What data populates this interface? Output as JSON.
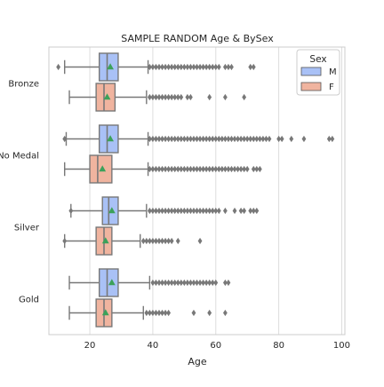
{
  "chart_data": {
    "type": "boxplot",
    "title": "SAMPLE RANDOM Age & BySex",
    "xlabel": "Age",
    "ylabel": "",
    "orientation": "horizontal",
    "xlim": [
      7,
      101
    ],
    "xticks": [
      20,
      40,
      60,
      80,
      100
    ],
    "grid": true,
    "legend": {
      "title": "Sex",
      "position": "top-right",
      "entries": [
        "M",
        "F"
      ]
    },
    "categories": [
      "Bronze",
      "No Medal",
      "Silver",
      "Gold"
    ],
    "series": [
      {
        "name": "M",
        "color": "#a9c1f6",
        "boxes": [
          {
            "whislo": 12,
            "q1": 23,
            "med": 25.5,
            "q3": 29,
            "whishi": 38.5,
            "mean": 26.5,
            "fliers": [
              10,
              39,
              40,
              41,
              42,
              43,
              44,
              45,
              46,
              47,
              48,
              49,
              50,
              51,
              52,
              53,
              54,
              55,
              56,
              57,
              58,
              59,
              60,
              61,
              63,
              64,
              65,
              71,
              72
            ]
          },
          {
            "whislo": 12.5,
            "q1": 23,
            "med": 25.5,
            "q3": 29,
            "whishi": 38.5,
            "mean": 26.5,
            "fliers": [
              12,
              39,
              40,
              41,
              42,
              43,
              44,
              45,
              46,
              47,
              48,
              49,
              50,
              51,
              52,
              53,
              54,
              55,
              56,
              57,
              58,
              59,
              60,
              61,
              62,
              63,
              64,
              65,
              66,
              67,
              68,
              69,
              70,
              71,
              72,
              73,
              74,
              75,
              76,
              77,
              80,
              81,
              84,
              88,
              96,
              97
            ]
          },
          {
            "whislo": 14,
            "q1": 24,
            "med": 26,
            "q3": 29,
            "whishi": 38,
            "mean": 27,
            "fliers": [
              14,
              39,
              40,
              41,
              42,
              43,
              44,
              45,
              46,
              47,
              48,
              49,
              50,
              51,
              52,
              53,
              54,
              55,
              56,
              57,
              58,
              59,
              60,
              61,
              63,
              66,
              68,
              69,
              71,
              72,
              73
            ]
          },
          {
            "whislo": 13.5,
            "q1": 23,
            "med": 25.5,
            "q3": 29,
            "whishi": 39,
            "mean": 27,
            "fliers": [
              40,
              41,
              42,
              43,
              44,
              45,
              46,
              47,
              48,
              49,
              50,
              51,
              52,
              53,
              54,
              55,
              56,
              57,
              58,
              59,
              60,
              63,
              64
            ]
          }
        ]
      },
      {
        "name": "F",
        "color": "#f0b49f",
        "boxes": [
          {
            "whislo": 13.5,
            "q1": 22,
            "med": 24.5,
            "q3": 28,
            "whishi": 38,
            "mean": 25.5,
            "fliers": [
              39,
              40,
              41,
              42,
              43,
              44,
              45,
              46,
              47,
              48,
              49,
              51,
              52,
              58,
              63,
              69
            ]
          },
          {
            "whislo": 12,
            "q1": 20,
            "med": 22.5,
            "q3": 27,
            "whishi": 38.5,
            "mean": 24,
            "fliers": [
              39,
              40,
              41,
              42,
              43,
              44,
              45,
              46,
              47,
              48,
              49,
              50,
              51,
              52,
              53,
              54,
              55,
              56,
              57,
              58,
              59,
              60,
              61,
              62,
              63,
              64,
              65,
              66,
              67,
              68,
              69,
              70,
              72,
              73,
              74
            ]
          },
          {
            "whislo": 12,
            "q1": 22,
            "med": 24.5,
            "q3": 27,
            "whishi": 36,
            "mean": 25,
            "fliers": [
              12,
              37,
              38,
              39,
              40,
              41,
              42,
              43,
              44,
              45,
              46,
              48,
              55
            ]
          },
          {
            "whislo": 13.5,
            "q1": 22,
            "med": 24.5,
            "q3": 27,
            "whishi": 37,
            "mean": 25,
            "fliers": [
              38,
              39,
              40,
              41,
              42,
              43,
              44,
              45,
              53,
              58,
              63
            ]
          }
        ]
      }
    ]
  }
}
